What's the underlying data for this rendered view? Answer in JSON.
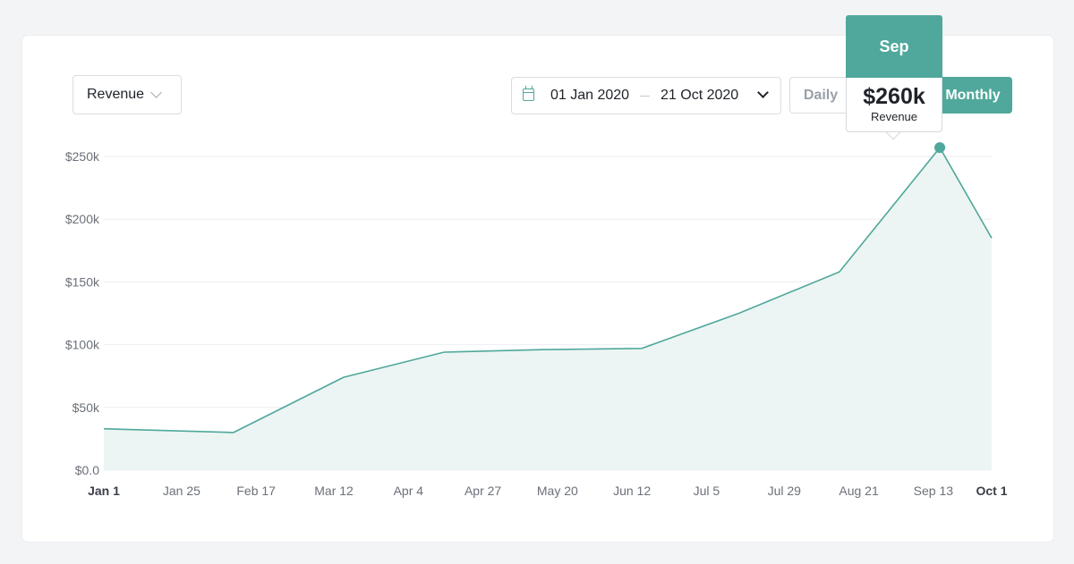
{
  "controls": {
    "metric": "Revenue",
    "date_from": "01 Jan 2020",
    "date_to": "21 Oct 2020",
    "period_options": [
      "Daily",
      "Monthly"
    ],
    "selected_period": "Monthly"
  },
  "tooltip": {
    "title": "Sep",
    "value": "$260k",
    "label": "Revenue"
  },
  "colors": {
    "accent": "#4fa89b",
    "area_fill": "#ecf5f3"
  },
  "chart_data": {
    "type": "area",
    "title": "",
    "xlabel": "",
    "ylabel": "",
    "ylim": [
      0,
      250000
    ],
    "y_ticks": [
      {
        "value": 0,
        "label": "$0.0"
      },
      {
        "value": 50000,
        "label": "$50k"
      },
      {
        "value": 100000,
        "label": "$100k"
      },
      {
        "value": 150000,
        "label": "$150k"
      },
      {
        "value": 200000,
        "label": "$200k"
      },
      {
        "value": 250000,
        "label": "$250k"
      }
    ],
    "x_range": [
      "2020-01-01",
      "2020-10-01"
    ],
    "x_ticks": [
      {
        "date": "2020-01-01",
        "label": "Jan 1",
        "bold": true
      },
      {
        "date": "2020-01-25",
        "label": "Jan 25",
        "bold": false
      },
      {
        "date": "2020-02-17",
        "label": "Feb 17",
        "bold": false
      },
      {
        "date": "2020-03-12",
        "label": "Mar 12",
        "bold": false
      },
      {
        "date": "2020-04-04",
        "label": "Apr 4",
        "bold": false
      },
      {
        "date": "2020-04-27",
        "label": "Apr 27",
        "bold": false
      },
      {
        "date": "2020-05-20",
        "label": "May 20",
        "bold": false
      },
      {
        "date": "2020-06-12",
        "label": "Jun 12",
        "bold": false
      },
      {
        "date": "2020-07-05",
        "label": "Jul 5",
        "bold": false
      },
      {
        "date": "2020-07-29",
        "label": "Jul 29",
        "bold": false
      },
      {
        "date": "2020-08-21",
        "label": "Aug 21",
        "bold": false
      },
      {
        "date": "2020-09-13",
        "label": "Sep 13",
        "bold": false
      },
      {
        "date": "2020-10-01",
        "label": "Oct 1",
        "bold": true
      }
    ],
    "grid": true,
    "legend": "none",
    "series": [
      {
        "x": [
          "2020-01-01",
          "2020-02-10",
          "2020-03-15",
          "2020-04-15",
          "2020-05-15",
          "2020-06-15",
          "2020-07-15",
          "2020-08-15",
          "2020-09-15",
          "2020-10-01"
        ],
        "values": [
          33000,
          30000,
          74000,
          94000,
          96000,
          97000,
          125000,
          158000,
          257000,
          185000
        ]
      }
    ],
    "highlight": {
      "date": "2020-09-15",
      "value": 257000
    }
  }
}
